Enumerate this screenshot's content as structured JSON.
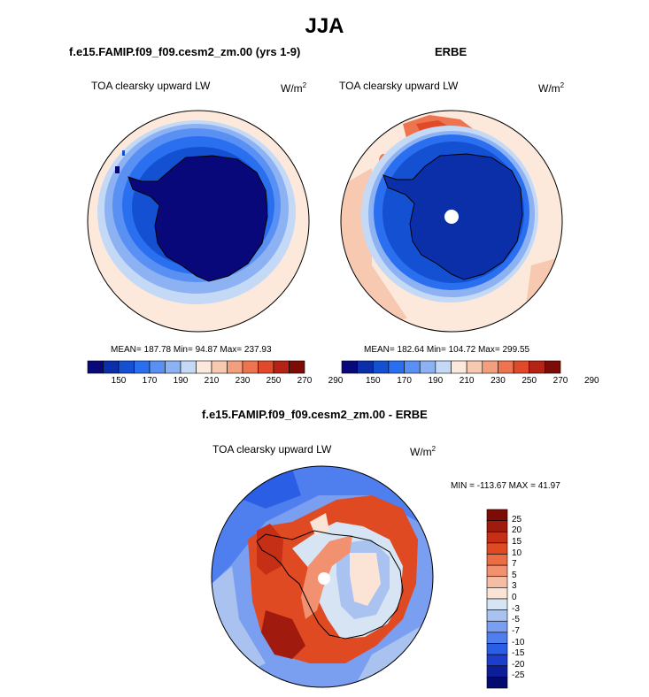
{
  "figure": {
    "title": "JJA",
    "diff_title": "f.e15.FAMIP.f09_f09.cesm2_zm.00 - ERBE"
  },
  "panels": [
    {
      "title": "f.e15.FAMIP.f09_f09.cesm2_zm.00 (yrs 1-9)",
      "left_label": "TOA clearsky upward LW",
      "units": "W/m",
      "units_exp": "2",
      "stats": "MEAN= 187.78  Min=  94.87  Max= 237.93",
      "colorbar_ticks": [
        "150",
        "170",
        "190",
        "210",
        "230",
        "250",
        "270",
        "290"
      ]
    },
    {
      "title": "ERBE",
      "left_label": "TOA clearsky upward LW",
      "units": "W/m",
      "units_exp": "2",
      "stats": "MEAN= 182.64  Min= 104.72  Max= 299.55",
      "colorbar_ticks": [
        "150",
        "170",
        "190",
        "210",
        "230",
        "250",
        "270",
        "290"
      ]
    },
    {
      "left_label": "TOA clearsky upward LW",
      "units": "W/m",
      "units_exp": "2",
      "stats": "MIN = -113.67 MAX =  41.97",
      "colorbar_ticks": [
        "25",
        "20",
        "15",
        "10",
        "7",
        "5",
        "3",
        "0",
        "-3",
        "-5",
        "-7",
        "-10",
        "-15",
        "-20",
        "-25"
      ]
    }
  ],
  "palettes": {
    "main": [
      "#08087a",
      "#0a2fa8",
      "#1450d2",
      "#2a6ff0",
      "#5990f3",
      "#8db2f3",
      "#c4d9f5",
      "#fde9db",
      "#f6c9b0",
      "#f29f7e",
      "#ee7450",
      "#e04a28",
      "#b52314",
      "#7d0b06"
    ],
    "diff": [
      "#7d0b06",
      "#a01b0d",
      "#c42f16",
      "#df4a22",
      "#ec6c44",
      "#f29170",
      "#f6bda5",
      "#fbe3d5",
      "#d7e4f4",
      "#a9c2ef",
      "#7a9ff0",
      "#4f7eee",
      "#2a5ee4",
      "#1c3ecb",
      "#0c1f99",
      "#040a6e"
    ]
  }
}
